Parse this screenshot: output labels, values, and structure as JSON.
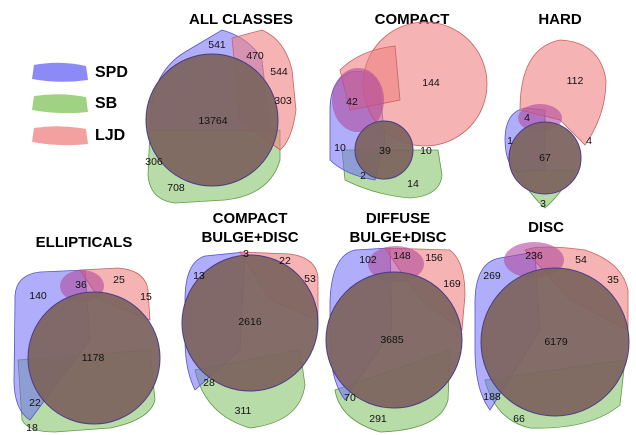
{
  "legend": {
    "items": [
      {
        "label": "SPD",
        "color": "#8c8af7"
      },
      {
        "label": "SB",
        "color": "#9fd283"
      },
      {
        "label": "LJD",
        "color": "#f3a0a0"
      }
    ]
  },
  "diagrams": [
    {
      "title": "ALL CLASSES",
      "title2": "",
      "values": {
        "spd_only": "541",
        "spd_ljd": "470",
        "ljd_only": "544",
        "sb_ljd": "303",
        "all": "13764",
        "spd_sb": "306",
        "sb_only": "708"
      }
    },
    {
      "title": "COMPACT",
      "title2": "",
      "values": {
        "ljd_only": "144",
        "spd_ljd": "42",
        "spd_only": "10",
        "all": "39",
        "sb_ljd": "10",
        "spd_sb": "2",
        "sb_only": "14"
      }
    },
    {
      "title": "HARD",
      "title2": "",
      "values": {
        "ljd_only": "112",
        "spd_ljd": "4",
        "spd_only": "1",
        "sb_ljd": "4",
        "all": "67",
        "sb_only": "3"
      }
    },
    {
      "title": "ELLIPTICALS",
      "title2": "",
      "values": {
        "spd_only": "140",
        "spd_ljd": "36",
        "ljd_only": "25",
        "sb_ljd": "15",
        "all": "1178",
        "spd_sb": "22",
        "sb_only": "18"
      }
    },
    {
      "title": "COMPACT",
      "title2": "BULGE+DISC",
      "values": {
        "spd_only": "13",
        "spd_ljd": "3",
        "ljd_only": "22",
        "sb_ljd": "53",
        "all": "2616",
        "spd_sb": "28",
        "sb_only": "311"
      }
    },
    {
      "title": "DIFFUSE",
      "title2": "BULGE+DISC",
      "values": {
        "spd_only": "102",
        "spd_ljd": "148",
        "ljd_only": "156",
        "sb_ljd": "169",
        "all": "3685",
        "spd_sb": "70",
        "sb_only": "291"
      }
    },
    {
      "title": "DISC",
      "title2": "",
      "values": {
        "spd_only": "269",
        "spd_ljd": "236",
        "ljd_only": "54",
        "sb_ljd": "35",
        "all": "6179",
        "spd_sb": "188",
        "sb_only": "66"
      }
    }
  ]
}
